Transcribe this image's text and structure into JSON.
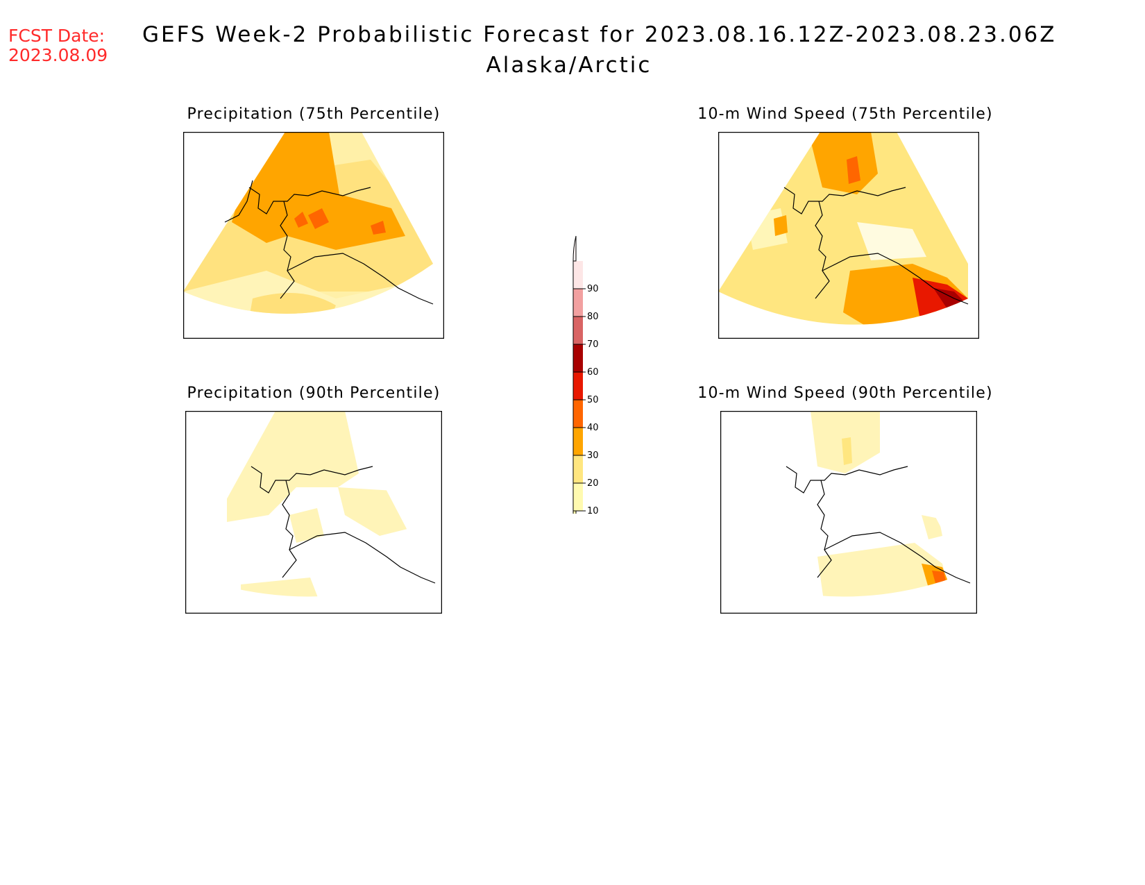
{
  "fcst_date": {
    "label": "FCST Date:",
    "value": "2023.08.09"
  },
  "title": {
    "line1": "GEFS Week-2 Probabilistic Forecast for 2023.08.16.12Z-2023.08.23.06Z",
    "line2": "Alaska/Arctic"
  },
  "panels": [
    {
      "id": "precip75",
      "title": "Precipitation (75th Percentile)"
    },
    {
      "id": "wind75",
      "title": "10-m Wind Speed (75th Percentile)"
    },
    {
      "id": "precip90",
      "title": "Precipitation (90th Percentile)"
    },
    {
      "id": "wind90",
      "title": "10-m Wind Speed (90th Percentile)"
    }
  ],
  "colorbar": {
    "levels": [
      "10",
      "20",
      "30",
      "40",
      "50",
      "60",
      "70",
      "80",
      "90"
    ],
    "colors": [
      "#fffab0",
      "#ffe680",
      "#ffa500",
      "#ff6600",
      "#e81800",
      "#a80000",
      "#d96464",
      "#f2a0a0",
      "#fde6e6"
    ]
  }
}
